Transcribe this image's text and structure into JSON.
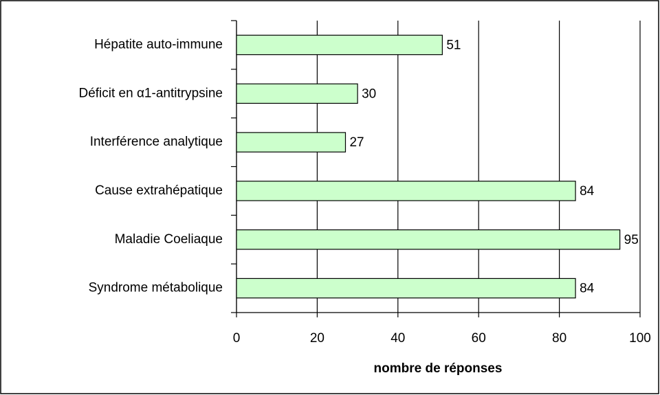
{
  "chart_data": {
    "type": "bar",
    "orientation": "horizontal",
    "xlabel": "nombre de réponses",
    "categories": [
      "Hépatite auto-immune",
      "Déficit en α1-antitrypsine",
      "Interférence analytique",
      "Cause extrahépatique",
      "Maladie Coeliaque",
      "Syndrome métabolique"
    ],
    "values": [
      51,
      30,
      27,
      84,
      95,
      84
    ],
    "color": "#ccffcc",
    "xlim": [
      0,
      100
    ],
    "xticks": [
      0,
      20,
      40,
      60,
      80,
      100
    ],
    "grid": true
  }
}
